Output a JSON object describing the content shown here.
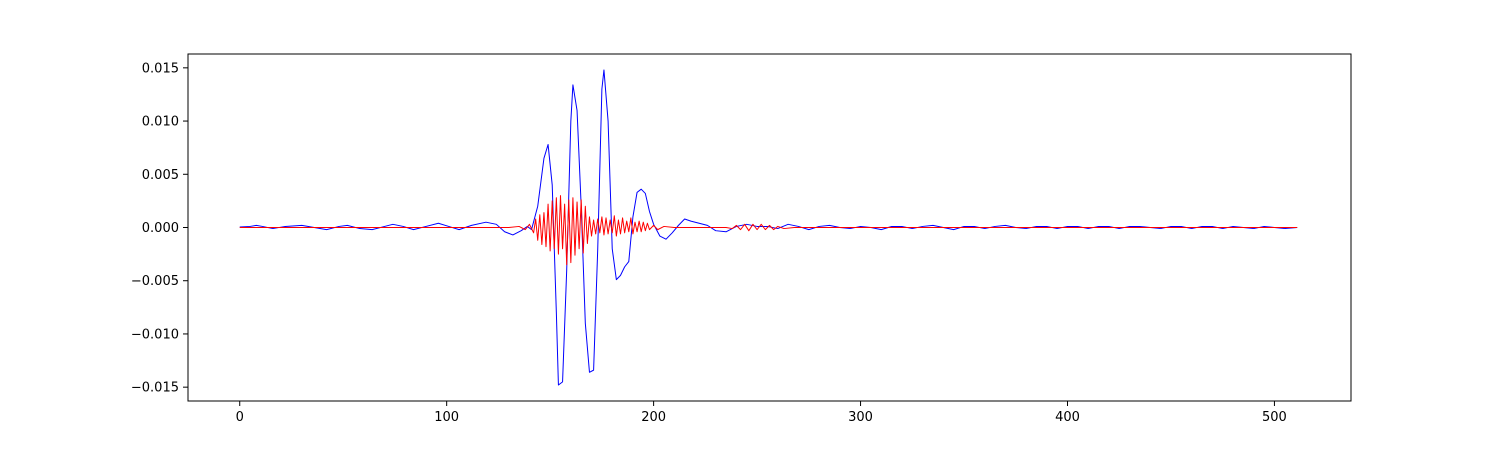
{
  "chart_data": {
    "type": "line",
    "title": "",
    "xlabel": "",
    "ylabel": "",
    "xlim": [
      -25,
      537
    ],
    "ylim": [
      -0.0163,
      0.0163
    ],
    "grid": false,
    "legend": "none",
    "x_ticks": [
      0,
      100,
      200,
      300,
      400,
      500
    ],
    "x_tick_labels": [
      "0",
      "100",
      "200",
      "300",
      "400",
      "500"
    ],
    "y_ticks": [
      0.015,
      0.01,
      0.005,
      0.0,
      -0.005,
      -0.01,
      -0.015
    ],
    "y_tick_labels": [
      "0.015",
      "0.010",
      "0.005",
      "0.000",
      "−0.005",
      "−0.010",
      "−0.015"
    ],
    "series": [
      {
        "color": "#0000ff",
        "points": [
          [
            0,
            5e-05
          ],
          [
            5,
            0.0001
          ],
          [
            8,
            0.0002
          ],
          [
            11,
            0.0001
          ],
          [
            16,
            -0.0001
          ],
          [
            22,
            0.0001
          ],
          [
            30,
            0.0002
          ],
          [
            36,
            0.0
          ],
          [
            42,
            -0.0002
          ],
          [
            48,
            0.0001
          ],
          [
            52,
            0.0002
          ],
          [
            58,
            -0.0001
          ],
          [
            64,
            -0.0002
          ],
          [
            70,
            0.0001
          ],
          [
            74,
            0.0003
          ],
          [
            79,
            0.0001
          ],
          [
            84,
            -0.0002
          ],
          [
            90,
            0.0001
          ],
          [
            96,
            0.0004
          ],
          [
            101,
            0.0001
          ],
          [
            106,
            -0.0002
          ],
          [
            112,
            0.0002
          ],
          [
            119,
            0.0005
          ],
          [
            124,
            0.0003
          ],
          [
            128,
            -0.0004
          ],
          [
            132,
            -0.0007
          ],
          [
            136,
            -0.0003
          ],
          [
            139,
            0.0001
          ],
          [
            141,
            -0.0002
          ],
          [
            144,
            0.002
          ],
          [
            147,
            0.0065
          ],
          [
            149,
            0.0078
          ],
          [
            151,
            0.004
          ],
          [
            153,
            -0.008
          ],
          [
            154,
            -0.0148
          ],
          [
            156,
            -0.0145
          ],
          [
            158,
            -0.004
          ],
          [
            160,
            0.01
          ],
          [
            161,
            0.0134
          ],
          [
            163,
            0.011
          ],
          [
            165,
            0.002
          ],
          [
            167,
            -0.009
          ],
          [
            169,
            -0.0136
          ],
          [
            171,
            -0.0134
          ],
          [
            173,
            -0.002
          ],
          [
            175,
            0.013
          ],
          [
            176,
            0.0148
          ],
          [
            178,
            0.01
          ],
          [
            180,
            -0.002
          ],
          [
            182,
            -0.0049
          ],
          [
            184,
            -0.0045
          ],
          [
            186,
            -0.0037
          ],
          [
            188,
            -0.0032
          ],
          [
            190,
            0.001
          ],
          [
            192,
            0.0033
          ],
          [
            194,
            0.0036
          ],
          [
            196,
            0.0032
          ],
          [
            198,
            0.0015
          ],
          [
            200,
            0.0003
          ],
          [
            203,
            -0.0008
          ],
          [
            206,
            -0.0011
          ],
          [
            209,
            -0.0005
          ],
          [
            212,
            0.0002
          ],
          [
            215,
            0.0008
          ],
          [
            218,
            0.0006
          ],
          [
            222,
            0.0004
          ],
          [
            226,
            0.0002
          ],
          [
            230,
            -0.0003
          ],
          [
            235,
            -0.0004
          ],
          [
            240,
            0.0001
          ],
          [
            245,
            0.0003
          ],
          [
            250,
            0.0001
          ],
          [
            255,
            0.0001
          ],
          [
            260,
            -0.0001
          ],
          [
            265,
            0.0003
          ],
          [
            270,
            0.0001
          ],
          [
            275,
            -0.0002
          ],
          [
            280,
            0.0001
          ],
          [
            285,
            0.0002
          ],
          [
            290,
            0.0
          ],
          [
            295,
            -0.0001
          ],
          [
            300,
            0.0001
          ],
          [
            305,
            0.0
          ],
          [
            310,
            -0.0002
          ],
          [
            315,
            0.0001
          ],
          [
            320,
            0.0001
          ],
          [
            325,
            -0.0001
          ],
          [
            330,
            0.0001
          ],
          [
            335,
            0.0002
          ],
          [
            340,
            0.0
          ],
          [
            345,
            -0.0002
          ],
          [
            350,
            0.0001
          ],
          [
            355,
            0.0001
          ],
          [
            360,
            -0.0001
          ],
          [
            365,
            0.0001
          ],
          [
            370,
            0.0002
          ],
          [
            375,
            0.0
          ],
          [
            380,
            -0.0001
          ],
          [
            385,
            0.0001
          ],
          [
            390,
            0.0001
          ],
          [
            395,
            -0.0001
          ],
          [
            400,
            0.0001
          ],
          [
            405,
            0.0001
          ],
          [
            410,
            -0.0001
          ],
          [
            415,
            0.0001
          ],
          [
            420,
            0.0001
          ],
          [
            425,
            -0.0001
          ],
          [
            430,
            0.0001
          ],
          [
            435,
            0.0001
          ],
          [
            440,
            0.0
          ],
          [
            445,
            -0.0001
          ],
          [
            450,
            0.0001
          ],
          [
            455,
            0.0001
          ],
          [
            460,
            -0.0001
          ],
          [
            465,
            0.0001
          ],
          [
            470,
            0.0001
          ],
          [
            475,
            -0.0001
          ],
          [
            480,
            0.0001
          ],
          [
            485,
            0.0
          ],
          [
            490,
            -0.0001
          ],
          [
            495,
            0.0001
          ],
          [
            500,
            0.0
          ],
          [
            505,
            -0.0001
          ],
          [
            511,
            0.0
          ]
        ]
      },
      {
        "color": "#ff0000",
        "points": [
          [
            0,
            0.0
          ],
          [
            130,
            0.0
          ],
          [
            135,
            0.0001
          ],
          [
            138,
            -0.0002
          ],
          [
            140,
            0.0003
          ],
          [
            142,
            -0.0005
          ],
          [
            143,
            0.0008
          ],
          [
            144,
            -0.0012
          ],
          [
            145,
            0.0012
          ],
          [
            146,
            -0.0016
          ],
          [
            147,
            0.0014
          ],
          [
            148,
            -0.0018
          ],
          [
            149,
            0.0022
          ],
          [
            150,
            -0.0022
          ],
          [
            151,
            0.0025
          ],
          [
            152,
            -0.002
          ],
          [
            153,
            0.0028
          ],
          [
            154,
            -0.0025
          ],
          [
            155,
            0.003
          ],
          [
            156,
            -0.002
          ],
          [
            157,
            0.0022
          ],
          [
            158,
            -0.0035
          ],
          [
            159,
            0.0026
          ],
          [
            160,
            -0.0033
          ],
          [
            161,
            0.0028
          ],
          [
            162,
            -0.0026
          ],
          [
            163,
            0.0024
          ],
          [
            164,
            -0.002
          ],
          [
            165,
            0.0026
          ],
          [
            166,
            -0.0024
          ],
          [
            167,
            0.002
          ],
          [
            168,
            -0.0015
          ],
          [
            169,
            0.001
          ],
          [
            170,
            -0.0008
          ],
          [
            171,
            0.0007
          ],
          [
            172,
            -0.0006
          ],
          [
            173,
            0.0008
          ],
          [
            174,
            -0.0005
          ],
          [
            175,
            0.001
          ],
          [
            176,
            -0.0007
          ],
          [
            177,
            0.0009
          ],
          [
            178,
            -0.0006
          ],
          [
            179,
            0.0007
          ],
          [
            180,
            -0.0005
          ],
          [
            181,
            0.0011
          ],
          [
            182,
            -0.0008
          ],
          [
            183,
            0.0007
          ],
          [
            184,
            -0.0006
          ],
          [
            185,
            0.0009
          ],
          [
            186,
            -0.0005
          ],
          [
            187,
            0.0006
          ],
          [
            188,
            -0.0004
          ],
          [
            189,
            0.0009
          ],
          [
            190,
            -0.0006
          ],
          [
            191,
            0.0005
          ],
          [
            192,
            -0.0004
          ],
          [
            193,
            0.0006
          ],
          [
            194,
            -0.0004
          ],
          [
            195,
            0.0005
          ],
          [
            196,
            -0.0003
          ],
          [
            197,
            0.0004
          ],
          [
            198,
            -0.0002
          ],
          [
            200,
            0.0002
          ],
          [
            202,
            -0.0002
          ],
          [
            205,
            0.0001
          ],
          [
            210,
            0.0
          ],
          [
            235,
            0.0
          ],
          [
            238,
            -0.0001
          ],
          [
            240,
            0.0002
          ],
          [
            242,
            -0.0002
          ],
          [
            244,
            0.0003
          ],
          [
            246,
            -0.0003
          ],
          [
            248,
            0.0003
          ],
          [
            250,
            -0.0002
          ],
          [
            252,
            0.0003
          ],
          [
            254,
            -0.0002
          ],
          [
            256,
            0.0002
          ],
          [
            258,
            -0.0002
          ],
          [
            260,
            0.0001
          ],
          [
            263,
            -0.0001
          ],
          [
            268,
            0.0
          ],
          [
            511,
            0.0
          ]
        ]
      }
    ]
  }
}
